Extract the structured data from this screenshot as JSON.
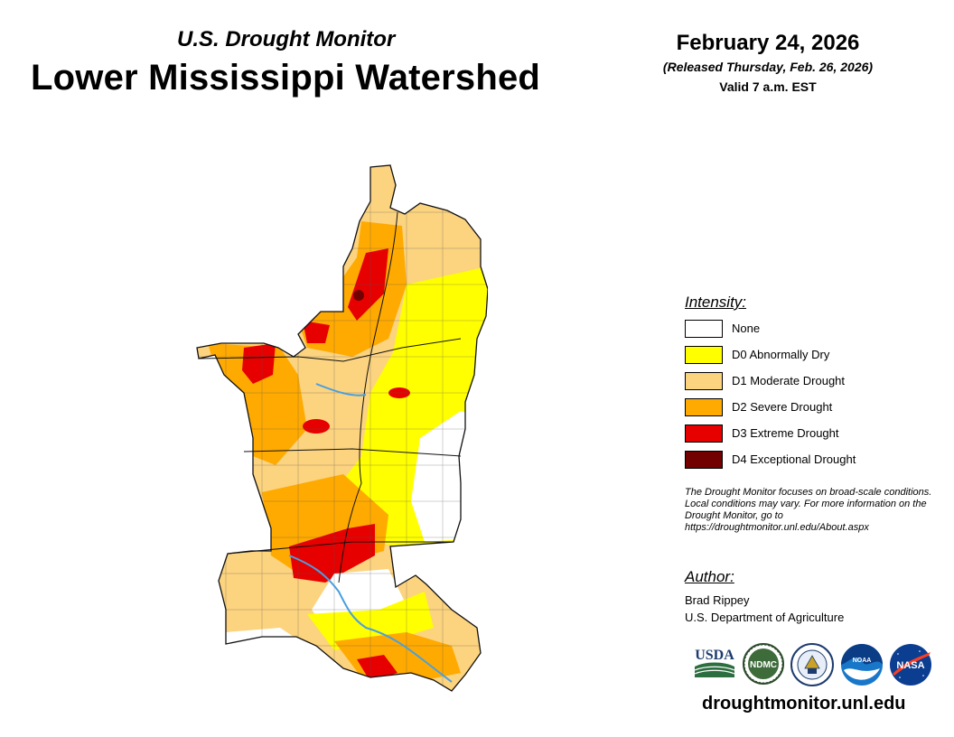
{
  "header": {
    "subtitle": "U.S. Drought Monitor",
    "title": "Lower Mississippi Watershed",
    "date": "February 24, 2026",
    "released": "(Released Thursday, Feb. 26, 2026)",
    "valid": "Valid 7 a.m. EST"
  },
  "legend": {
    "title": "Intensity:",
    "items": [
      {
        "label": "None",
        "color": "#ffffff"
      },
      {
        "label": "D0 Abnormally Dry",
        "color": "#ffff00"
      },
      {
        "label": "D1 Moderate Drought",
        "color": "#fcd37f"
      },
      {
        "label": "D2 Severe Drought",
        "color": "#ffaa00"
      },
      {
        "label": "D3 Extreme Drought",
        "color": "#e60000"
      },
      {
        "label": "D4 Exceptional Drought",
        "color": "#730000"
      }
    ]
  },
  "note": "The Drought Monitor focuses on broad-scale conditions. Local conditions may vary. For more information on the Drought Monitor, go to https://droughtmonitor.unl.edu/About.aspx",
  "author": {
    "title": "Author:",
    "name": "Brad Rippey",
    "org": "U.S. Department of Agriculture"
  },
  "logos": {
    "usda": "USDA",
    "ndmc": "NDMC",
    "commerce": "commerce-seal-icon",
    "noaa": "NOAA",
    "nasa": "NASA"
  },
  "website": "droughtmonitor.unl.edu",
  "map": {
    "river_color": "#4a9fe0",
    "border_color": "#333333"
  }
}
